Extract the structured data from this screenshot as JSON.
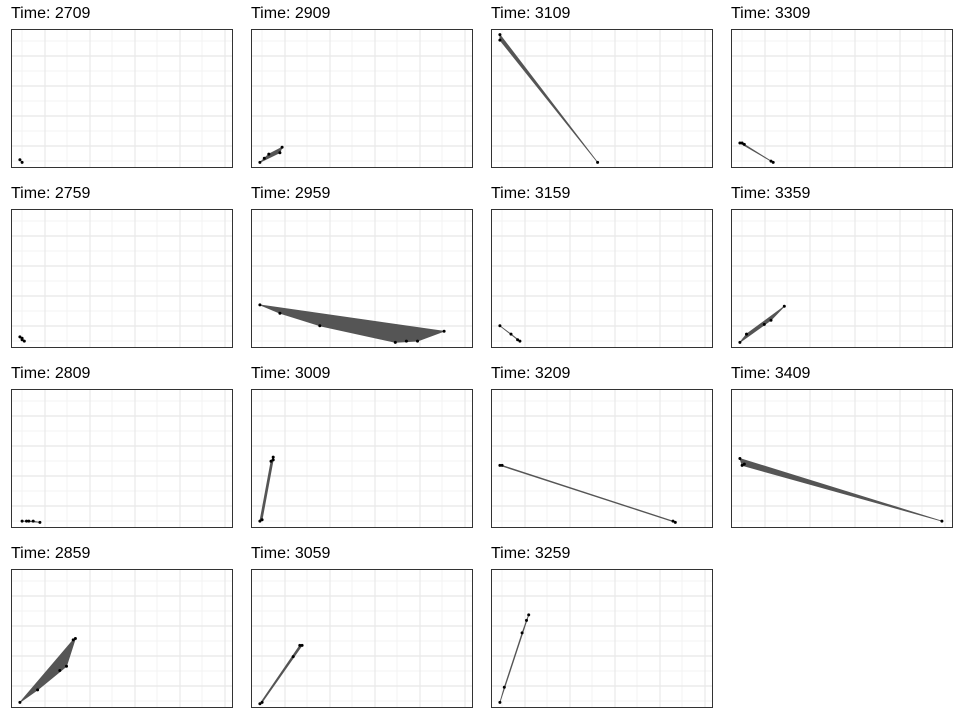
{
  "chart_data": {
    "type": "faceted-scatter-hull",
    "layout": {
      "rows": 4,
      "cols": 4,
      "order": "column-major"
    },
    "xlim": [
      0,
      1
    ],
    "ylim": [
      0,
      1
    ],
    "grid": true,
    "axis_ticks": false,
    "colors": {
      "hull_fill": "#555555",
      "point": "#000000",
      "grid_major": "#e8e8e8",
      "grid_minor": "#f3f3f3",
      "border": "#333333"
    },
    "panels": [
      {
        "title": "Time: 2709",
        "points": [
          [
            0.04,
            0.06
          ],
          [
            0.05,
            0.04
          ]
        ]
      },
      {
        "title": "Time: 2759",
        "points": [
          [
            0.04,
            0.08
          ],
          [
            0.05,
            0.06
          ],
          [
            0.06,
            0.05
          ],
          [
            0.05,
            0.07
          ]
        ]
      },
      {
        "title": "Time: 2809",
        "points": [
          [
            0.05,
            0.05
          ],
          [
            0.07,
            0.05
          ],
          [
            0.08,
            0.05
          ],
          [
            0.1,
            0.05
          ],
          [
            0.13,
            0.04
          ]
        ]
      },
      {
        "title": "Time: 2859",
        "points": [
          [
            0.04,
            0.04
          ],
          [
            0.12,
            0.13
          ],
          [
            0.22,
            0.27
          ],
          [
            0.25,
            0.3
          ],
          [
            0.28,
            0.49
          ],
          [
            0.29,
            0.5
          ]
        ]
      },
      {
        "title": "Time: 2909",
        "points": [
          [
            0.04,
            0.04
          ],
          [
            0.06,
            0.07
          ],
          [
            0.08,
            0.1
          ],
          [
            0.13,
            0.11
          ],
          [
            0.14,
            0.15
          ]
        ]
      },
      {
        "title": "Time: 2959",
        "points": [
          [
            0.04,
            0.31
          ],
          [
            0.13,
            0.25
          ],
          [
            0.31,
            0.16
          ],
          [
            0.65,
            0.04
          ],
          [
            0.7,
            0.05
          ],
          [
            0.75,
            0.05
          ],
          [
            0.87,
            0.12
          ]
        ]
      },
      {
        "title": "Time: 3009",
        "points": [
          [
            0.04,
            0.05
          ],
          [
            0.05,
            0.06
          ],
          [
            0.09,
            0.48
          ],
          [
            0.1,
            0.51
          ],
          [
            0.1,
            0.49
          ]
        ]
      },
      {
        "title": "Time: 3059",
        "points": [
          [
            0.04,
            0.03
          ],
          [
            0.05,
            0.04
          ],
          [
            0.19,
            0.37
          ],
          [
            0.22,
            0.45
          ],
          [
            0.23,
            0.45
          ]
        ]
      },
      {
        "title": "Time: 3109",
        "points": [
          [
            0.04,
            0.96
          ],
          [
            0.04,
            0.92
          ],
          [
            0.48,
            0.04
          ]
        ]
      },
      {
        "title": "Time: 3159",
        "points": [
          [
            0.04,
            0.16
          ],
          [
            0.09,
            0.1
          ],
          [
            0.12,
            0.06
          ],
          [
            0.13,
            0.05
          ]
        ]
      },
      {
        "title": "Time: 3209",
        "points": [
          [
            0.04,
            0.45
          ],
          [
            0.05,
            0.45
          ],
          [
            0.82,
            0.05
          ],
          [
            0.83,
            0.04
          ]
        ]
      },
      {
        "title": "Time: 3259",
        "points": [
          [
            0.04,
            0.04
          ],
          [
            0.06,
            0.15
          ],
          [
            0.14,
            0.54
          ],
          [
            0.16,
            0.63
          ],
          [
            0.17,
            0.67
          ]
        ]
      },
      {
        "title": "Time: 3309",
        "points": [
          [
            0.04,
            0.18
          ],
          [
            0.05,
            0.18
          ],
          [
            0.06,
            0.17
          ],
          [
            0.18,
            0.05
          ],
          [
            0.19,
            0.04
          ]
        ]
      },
      {
        "title": "Time: 3359",
        "points": [
          [
            0.04,
            0.04
          ],
          [
            0.07,
            0.1
          ],
          [
            0.15,
            0.17
          ],
          [
            0.18,
            0.2
          ],
          [
            0.24,
            0.3
          ]
        ]
      },
      {
        "title": "Time: 3409",
        "points": [
          [
            0.04,
            0.5
          ],
          [
            0.05,
            0.45
          ],
          [
            0.06,
            0.46
          ],
          [
            0.95,
            0.05
          ]
        ]
      }
    ]
  }
}
